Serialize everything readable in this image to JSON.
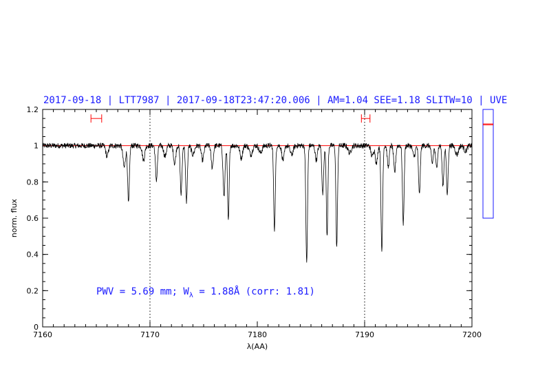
{
  "chart_data": {
    "type": "line",
    "title": "2017-09-18 | LTT7987 | 2017-09-18T23:47:20.006 | AM=1.04  SEE=1.18  SLITW=10 | UVE",
    "xlabel": "λ(AA)",
    "ylabel": "norm. flux",
    "xlim": [
      7160,
      7200
    ],
    "ylim": [
      0,
      1.2
    ],
    "x_ticks": [
      7160,
      7170,
      7180,
      7190,
      7200
    ],
    "y_ticks": [
      0,
      0.2,
      0.4,
      0.6,
      0.8,
      1,
      1.2
    ],
    "x_tick_labels": [
      "7160",
      "7170",
      "7180",
      "7190",
      "7200"
    ],
    "y_tick_labels": [
      "0",
      "0.2",
      "0.4",
      "0.6",
      "0.8",
      "1",
      "1.2"
    ],
    "grid": false,
    "reference_line": {
      "y": 1.0,
      "color": "#ff0000"
    },
    "vertical_dotted_lines": [
      7170,
      7190
    ],
    "continuum_windows": [
      {
        "x0": 7164.5,
        "x1": 7165.5,
        "y": 1.15
      },
      {
        "x0": 7189.7,
        "x1": 7190.5,
        "y": 1.15
      }
    ],
    "annotation": {
      "prefix": "PWV = 5.69 mm; W",
      "subscript": "λ",
      "suffix": " = 1.88Å (corr: 1.81)",
      "x": 7165,
      "y": 0.2
    },
    "baseline": 1.0,
    "absorption_lines": [
      {
        "x": 7166.0,
        "depth": 0.06,
        "width": 0.25
      },
      {
        "x": 7167.6,
        "depth": 0.12,
        "width": 0.25
      },
      {
        "x": 7168.0,
        "depth": 0.32,
        "width": 0.18
      },
      {
        "x": 7169.4,
        "depth": 0.08,
        "width": 0.25
      },
      {
        "x": 7170.6,
        "depth": 0.19,
        "width": 0.2
      },
      {
        "x": 7171.4,
        "depth": 0.06,
        "width": 0.25
      },
      {
        "x": 7172.3,
        "depth": 0.1,
        "width": 0.22
      },
      {
        "x": 7172.9,
        "depth": 0.27,
        "width": 0.18
      },
      {
        "x": 7173.4,
        "depth": 0.31,
        "width": 0.18
      },
      {
        "x": 7174.0,
        "depth": 0.05,
        "width": 0.3
      },
      {
        "x": 7174.9,
        "depth": 0.08,
        "width": 0.25
      },
      {
        "x": 7175.8,
        "depth": 0.12,
        "width": 0.22
      },
      {
        "x": 7176.9,
        "depth": 0.28,
        "width": 0.2
      },
      {
        "x": 7177.3,
        "depth": 0.42,
        "width": 0.16
      },
      {
        "x": 7178.5,
        "depth": 0.07,
        "width": 0.25
      },
      {
        "x": 7179.4,
        "depth": 0.05,
        "width": 0.3
      },
      {
        "x": 7180.3,
        "depth": 0.04,
        "width": 0.3
      },
      {
        "x": 7181.6,
        "depth": 0.46,
        "width": 0.17
      },
      {
        "x": 7182.4,
        "depth": 0.08,
        "width": 0.25
      },
      {
        "x": 7183.2,
        "depth": 0.05,
        "width": 0.3
      },
      {
        "x": 7184.6,
        "depth": 0.65,
        "width": 0.17
      },
      {
        "x": 7185.5,
        "depth": 0.08,
        "width": 0.22
      },
      {
        "x": 7186.1,
        "depth": 0.27,
        "width": 0.18
      },
      {
        "x": 7186.5,
        "depth": 0.5,
        "width": 0.16
      },
      {
        "x": 7187.4,
        "depth": 0.56,
        "width": 0.16
      },
      {
        "x": 7188.6,
        "depth": 0.04,
        "width": 0.3
      },
      {
        "x": 7190.7,
        "depth": 0.06,
        "width": 0.25
      },
      {
        "x": 7191.1,
        "depth": 0.1,
        "width": 0.22
      },
      {
        "x": 7191.6,
        "depth": 0.59,
        "width": 0.17
      },
      {
        "x": 7192.2,
        "depth": 0.12,
        "width": 0.2
      },
      {
        "x": 7192.8,
        "depth": 0.15,
        "width": 0.2
      },
      {
        "x": 7193.6,
        "depth": 0.43,
        "width": 0.17
      },
      {
        "x": 7194.6,
        "depth": 0.06,
        "width": 0.25
      },
      {
        "x": 7195.1,
        "depth": 0.27,
        "width": 0.18
      },
      {
        "x": 7196.3,
        "depth": 0.1,
        "width": 0.2
      },
      {
        "x": 7196.7,
        "depth": 0.12,
        "width": 0.2
      },
      {
        "x": 7197.3,
        "depth": 0.22,
        "width": 0.18
      },
      {
        "x": 7197.7,
        "depth": 0.27,
        "width": 0.17
      },
      {
        "x": 7198.6,
        "depth": 0.05,
        "width": 0.3
      },
      {
        "x": 7199.4,
        "depth": 0.03,
        "width": 0.3
      }
    ],
    "side_panel": {
      "border_color": "#1a1aff",
      "marker_color": "#ff0000",
      "ylim": [
        0,
        1.2
      ],
      "marker_values": [
        1.04,
        1.03
      ]
    },
    "colors": {
      "title": "#1a1aff",
      "spectrum": "#000000",
      "fit": "#ff0000",
      "windows": "#ff0000",
      "annotation": "#1a1aff"
    }
  }
}
